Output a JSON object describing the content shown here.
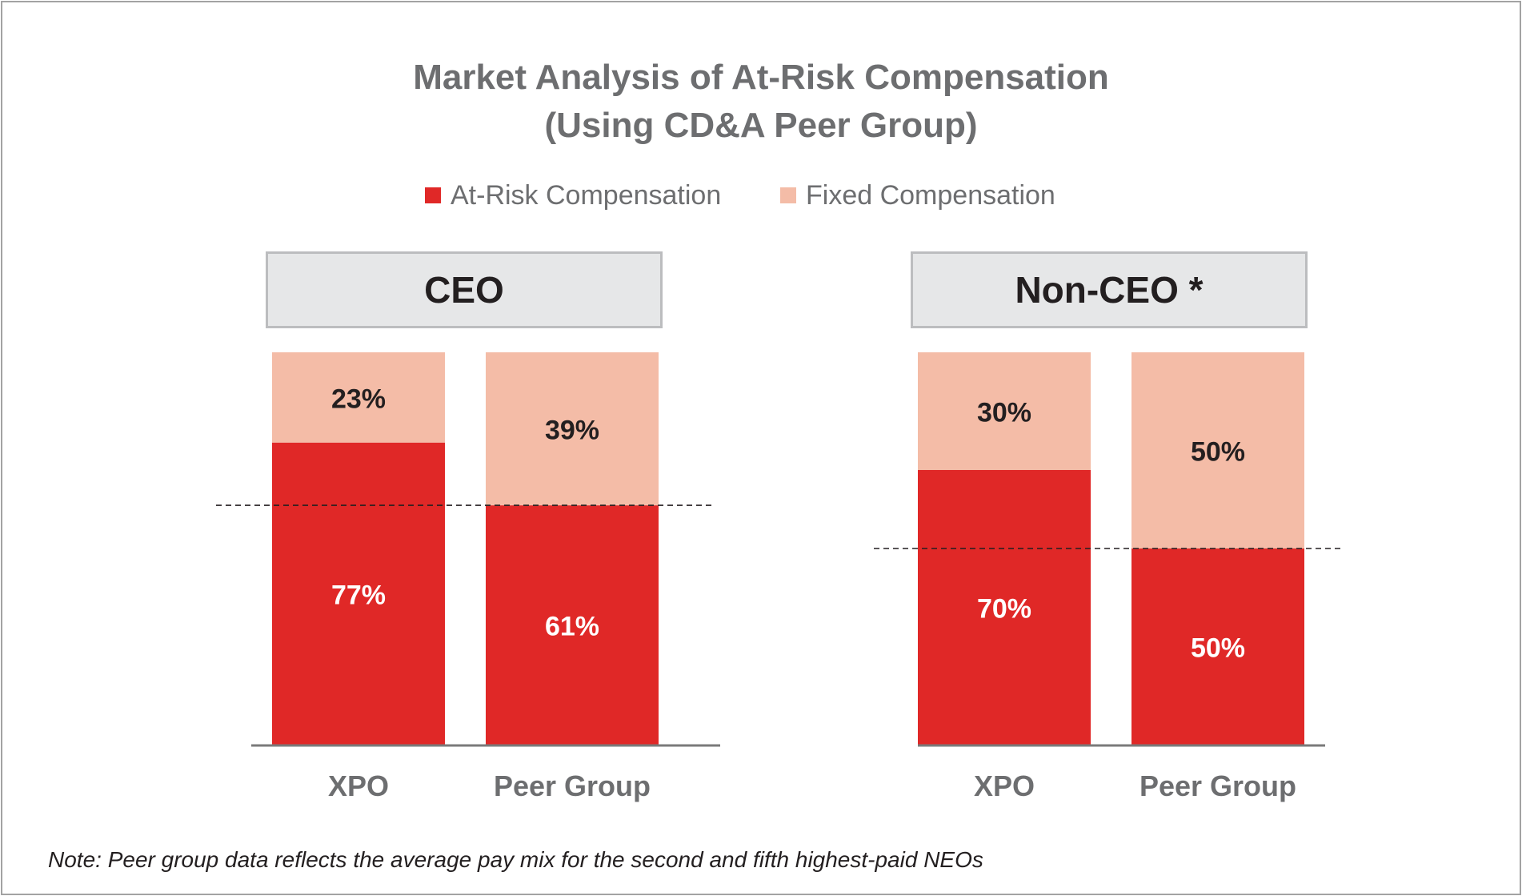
{
  "title": {
    "line1": "Market Analysis of At-Risk Compensation",
    "line2": "(Using CD&A Peer Group)"
  },
  "legend": [
    {
      "label": "At-Risk Compensation",
      "color": "#e02827"
    },
    {
      "label": "Fixed Compensation",
      "color": "#f4bca7"
    }
  ],
  "chart_data": {
    "type": "bar",
    "stacked": true,
    "panels": [
      {
        "title": "CEO",
        "categories": [
          "XPO",
          "Peer Group"
        ],
        "series": [
          {
            "name": "At-Risk Compensation",
            "values": [
              77,
              61
            ],
            "labels": [
              "77%",
              "61%"
            ]
          },
          {
            "name": "Fixed Compensation",
            "values": [
              23,
              39
            ],
            "labels": [
              "23%",
              "39%"
            ]
          }
        ],
        "reference_line": 61
      },
      {
        "title": "Non-CEO *",
        "categories": [
          "XPO",
          "Peer Group"
        ],
        "series": [
          {
            "name": "At-Risk Compensation",
            "values": [
              70,
              50
            ],
            "labels": [
              "70%",
              "50%"
            ]
          },
          {
            "name": "Fixed Compensation",
            "values": [
              30,
              50
            ],
            "labels": [
              "30%",
              "50%"
            ]
          }
        ],
        "reference_line": 50
      }
    ],
    "ylim": [
      0,
      100
    ],
    "unit": "%"
  },
  "footnote": "Note: Peer group data reflects the average pay mix for the second and fifth highest-paid NEOs",
  "colors": {
    "at_risk": "#e02827",
    "fixed": "#f4bca7",
    "title": "#6d6e70",
    "axis": "#6d6e70"
  }
}
